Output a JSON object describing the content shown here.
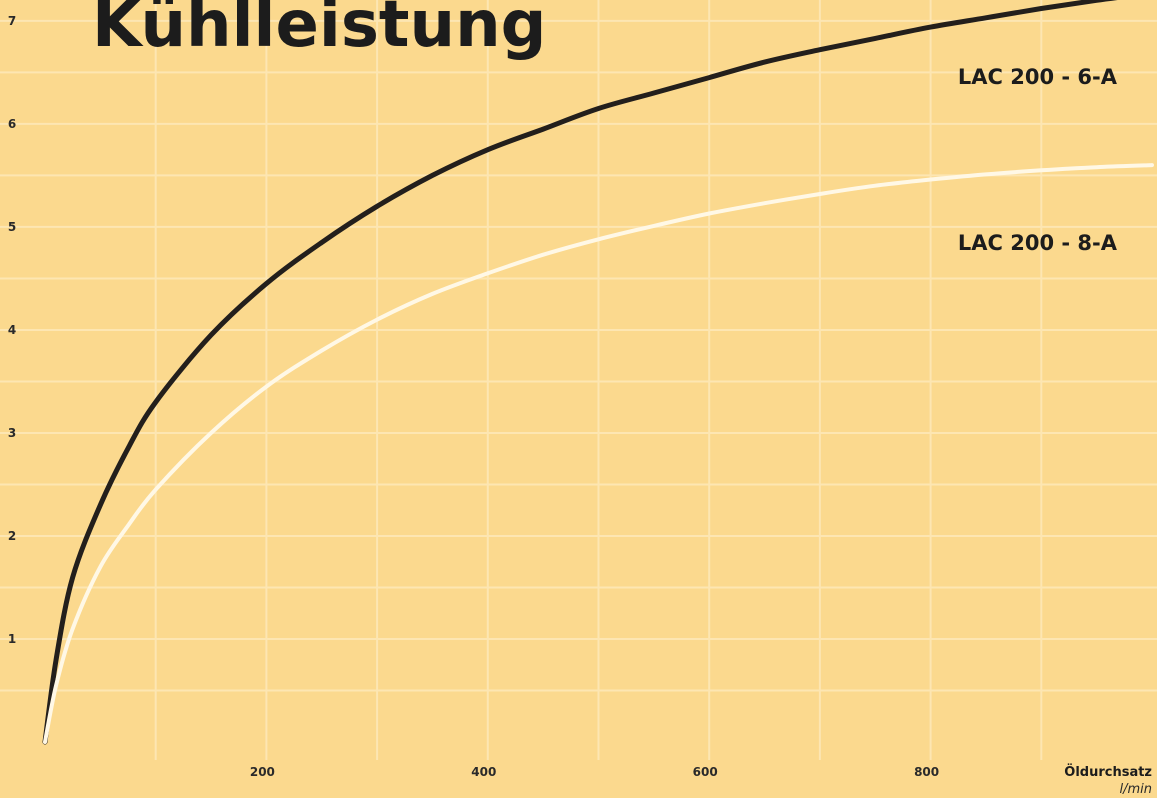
{
  "colors": {
    "background": "#fbd98e",
    "grid": "#fde6b2",
    "series_dark": "#231f1c",
    "series_light": "#fff8e6",
    "text": "#1c1c1c"
  },
  "chart_data": {
    "type": "line",
    "title": "Kühlleistung",
    "xlabel": "Öldurchsatz",
    "xunit": "l/min",
    "ylabel": "",
    "xlim": [
      0,
      1000
    ],
    "ylim": [
      0,
      7.3
    ],
    "xticks": [
      200,
      400,
      600,
      800
    ],
    "xtick_labels": [
      "200",
      "400",
      "600",
      "800"
    ],
    "yticks": [
      1,
      2,
      3,
      4,
      5,
      6,
      7
    ],
    "ytick_labels": [
      "1",
      "2",
      "3",
      "4",
      "5",
      "6",
      "7"
    ],
    "grid": true,
    "legend": "inline labels right",
    "series": [
      {
        "name": "LAC 200 - 6-A",
        "color": "#231f1c",
        "x": [
          0,
          10,
          25,
          50,
          75,
          100,
          150,
          200,
          250,
          300,
          350,
          400,
          450,
          500,
          550,
          600,
          650,
          700,
          750,
          800,
          850,
          900,
          950,
          1000
        ],
        "y": [
          0,
          0.8,
          1.6,
          2.3,
          2.85,
          3.3,
          3.95,
          4.45,
          4.85,
          5.2,
          5.5,
          5.75,
          5.95,
          6.15,
          6.3,
          6.45,
          6.6,
          6.72,
          6.83,
          6.94,
          7.03,
          7.12,
          7.2,
          7.27
        ]
      },
      {
        "name": "LAC 200 - 8-A",
        "color": "#fff8e6",
        "x": [
          0,
          10,
          25,
          50,
          75,
          100,
          150,
          200,
          250,
          300,
          350,
          400,
          450,
          500,
          550,
          600,
          650,
          700,
          750,
          800,
          850,
          900,
          950,
          1000
        ],
        "y": [
          0,
          0.55,
          1.1,
          1.7,
          2.1,
          2.45,
          3.0,
          3.45,
          3.8,
          4.1,
          4.35,
          4.55,
          4.73,
          4.88,
          5.01,
          5.13,
          5.23,
          5.32,
          5.4,
          5.46,
          5.51,
          5.55,
          5.58,
          5.6
        ]
      }
    ]
  }
}
